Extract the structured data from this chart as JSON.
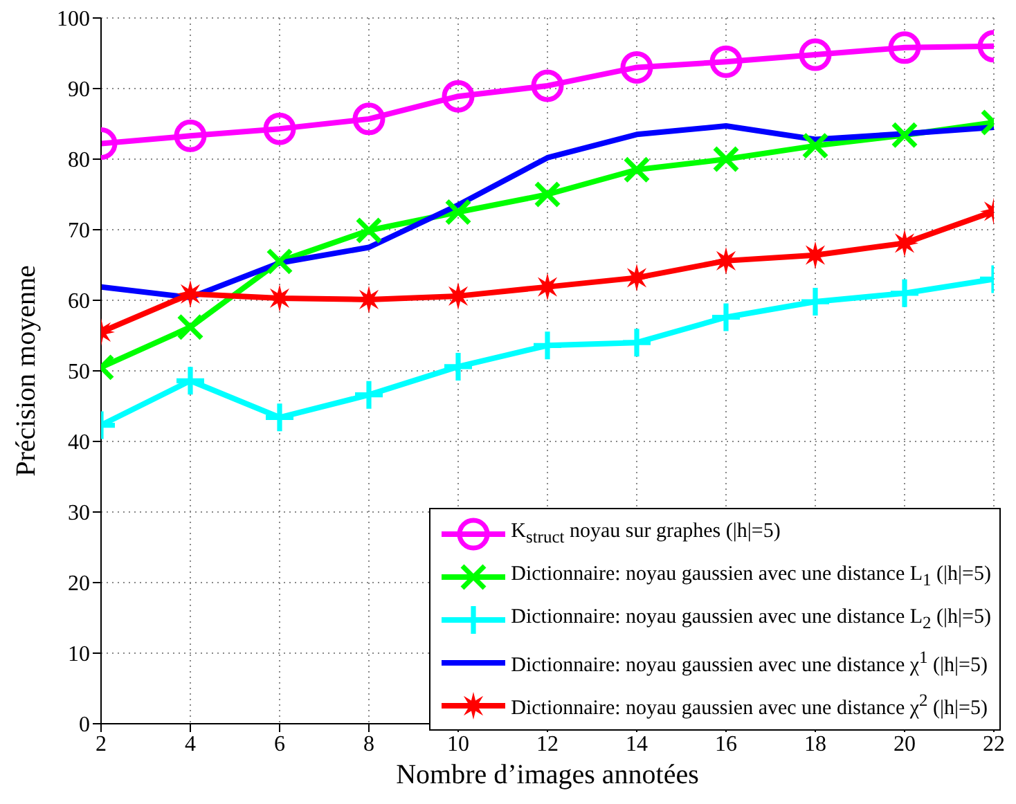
{
  "chart_data": {
    "type": "line",
    "xlabel": "Nombre d’images annotées",
    "ylabel": "Précision moyenne",
    "x": [
      2,
      4,
      6,
      8,
      10,
      12,
      14,
      16,
      18,
      20,
      22
    ],
    "xlim": [
      2,
      22
    ],
    "xticks": [
      2,
      4,
      6,
      8,
      10,
      12,
      14,
      16,
      18,
      20,
      22
    ],
    "ylim": [
      0,
      100
    ],
    "yticks": [
      0,
      10,
      20,
      30,
      40,
      50,
      60,
      70,
      80,
      90,
      100
    ],
    "grid": true,
    "legend": "bottom right",
    "line_style": "solid",
    "series": [
      {
        "name": "K$_{struct}$ noyau sur graphes (|h|=5)",
        "color": "#ff00ff",
        "marker": "circle",
        "values": [
          82.2,
          83.3,
          84.3,
          85.7,
          88.9,
          90.4,
          93,
          93.8,
          94.8,
          95.8,
          96.0
        ]
      },
      {
        "name": "Dictionnaire: noyau gaussien avec une distance L$_{1}$ (|h|=5)",
        "color": "#00ff00",
        "marker": "cross",
        "values": [
          50.5,
          56.2,
          65.5,
          69.9,
          72.5,
          75,
          78.5,
          80,
          81.9,
          83.4,
          85.2
        ]
      },
      {
        "name": "Dictionnaire: noyau gaussien avec une distance L$_{2}$ (|h|=5)",
        "color": "#00ffff",
        "marker": "plus",
        "values": [
          42.3,
          48.6,
          43.4,
          46.6,
          50.6,
          53.6,
          54.0,
          57.6,
          59.8,
          61.0,
          63.0
        ]
      },
      {
        "name": "Dictionnaire: noyau gaussien avec une distance χ$^{1}$ (|h|=5)",
        "color": "#0000ff",
        "marker": "none",
        "values": [
          61.9,
          60.4,
          65.3,
          67.5,
          73.5,
          80.2,
          83.5,
          84.7,
          82.8,
          83.6,
          84.5
        ]
      },
      {
        "name": "Dictionnaire: noyau gaussien avec une distance χ$^{2}$ (|h|=5)",
        "color": "#ff0000",
        "marker": "star",
        "values": [
          55.5,
          60.9,
          60.3,
          60.1,
          60.6,
          61.9,
          63.2,
          65.6,
          66.4,
          68.1,
          72.6
        ]
      }
    ]
  }
}
